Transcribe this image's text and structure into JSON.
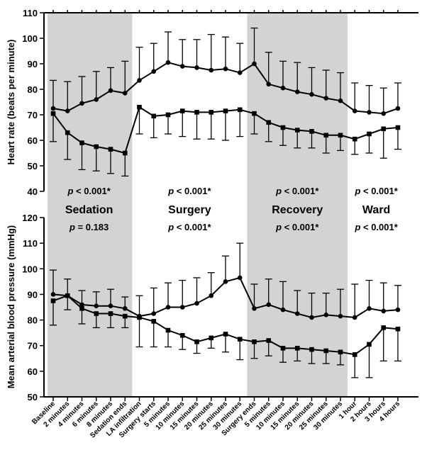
{
  "chart_data": {
    "type": "line",
    "x_categories": [
      "Baseline",
      "2 minutes",
      "4 minutes",
      "6 minutes",
      "8 minutes",
      "Sedation ends",
      "LA infiltration",
      "Surgery starts",
      "5 minutes",
      "10 minutes",
      "15 minutes",
      "20 minutes",
      "25 minutes",
      "30 minutes",
      "Surgery ends",
      "5 minutes",
      "10 minutes",
      "15 minutes",
      "20 minutes",
      "25 minutes",
      "30 minutes",
      "1 hour",
      "2 hours",
      "3 hours",
      "4 hours"
    ],
    "phases": [
      {
        "name": "Sedation",
        "p_hr": "p < 0.001*",
        "p_map": "p = 0.183",
        "shaded": true,
        "from_index": 0,
        "to_index": 5
      },
      {
        "name": "Surgery",
        "p_hr": "p < 0.001*",
        "p_map": "p < 0.001*",
        "shaded": false,
        "from_index": 6,
        "to_index": 13
      },
      {
        "name": "Recovery",
        "p_hr": "p < 0.001*",
        "p_map": "p < 0.001*",
        "shaded": true,
        "from_index": 14,
        "to_index": 20
      },
      {
        "name": "Ward",
        "p_hr": "p < 0.001*",
        "p_map": "p < 0.001*",
        "shaded": false,
        "from_index": 21,
        "to_index": 24
      }
    ],
    "top_panel": {
      "ylabel": "Heart rate (beats per minute)",
      "ylim": [
        40,
        110
      ],
      "yticks": [
        40,
        50,
        60,
        70,
        80,
        90,
        100,
        110
      ],
      "series": [
        {
          "marker": "circle",
          "values": [
            72.5,
            71.5,
            74.5,
            76,
            79.5,
            78.5,
            83.5,
            87,
            90.5,
            89,
            88.5,
            87.5,
            88,
            86.5,
            90,
            82,
            80.5,
            79,
            78,
            76.5,
            75.5,
            71.5,
            71,
            70.5,
            72.5
          ],
          "error": [
            11,
            11.5,
            10.5,
            11,
            9,
            12.5,
            13,
            11,
            12,
            10.5,
            11,
            14,
            12.5,
            11.5,
            14,
            12.5,
            10.5,
            11.5,
            10.5,
            11,
            11,
            11,
            10.5,
            10,
            10
          ]
        },
        {
          "marker": "square",
          "values": [
            70.5,
            63,
            59,
            57.5,
            56.5,
            55,
            73,
            69.5,
            70,
            71.5,
            71,
            71,
            71.5,
            72,
            70.5,
            67,
            65,
            64,
            63.5,
            62,
            62,
            60.5,
            62.5,
            64.5,
            65
          ],
          "error": [
            11,
            10.5,
            10.5,
            9.5,
            9.5,
            9,
            10.5,
            8.5,
            7.5,
            10,
            10.5,
            10.5,
            11.5,
            10.5,
            8,
            7.5,
            7,
            7,
            6.5,
            7,
            6,
            6,
            7.5,
            11.5,
            8.5
          ]
        }
      ]
    },
    "bottom_panel": {
      "ylabel": "Mean arterial blood pressure (mmHg)",
      "ylim": [
        50,
        120
      ],
      "yticks": [
        50,
        60,
        70,
        80,
        90,
        100,
        110,
        120
      ],
      "series": [
        {
          "marker": "circle",
          "values": [
            90,
            89.5,
            86,
            85.5,
            85.5,
            84.5,
            81.5,
            82.5,
            85,
            85,
            86.5,
            89.5,
            95,
            96.5,
            84.5,
            86,
            84,
            82.5,
            81,
            82,
            81.5,
            81,
            84.5,
            83.5,
            84
          ],
          "error": [
            9.5,
            6.5,
            5.5,
            5.5,
            6.5,
            4.5,
            8,
            10,
            9.5,
            10.5,
            10,
            9,
            10,
            13.5,
            9.5,
            10,
            11,
            9,
            9.5,
            8.5,
            10.5,
            13,
            11,
            11,
            9.5
          ]
        },
        {
          "marker": "square",
          "values": [
            87.5,
            89.5,
            84.5,
            82.5,
            82.5,
            81.5,
            81,
            79.5,
            76,
            74,
            71.5,
            73,
            74.5,
            72.5,
            71.5,
            72,
            69,
            69,
            68.5,
            68,
            67.5,
            66.5,
            70.5,
            77,
            76.5
          ],
          "error": [
            9.5,
            5.5,
            6,
            5.5,
            5.5,
            4.5,
            11.5,
            10,
            6.5,
            5.5,
            4.5,
            4,
            7,
            8,
            6.5,
            6,
            5.5,
            5,
            5.5,
            5,
            5,
            9,
            13,
            13,
            12.5
          ]
        }
      ]
    }
  }
}
